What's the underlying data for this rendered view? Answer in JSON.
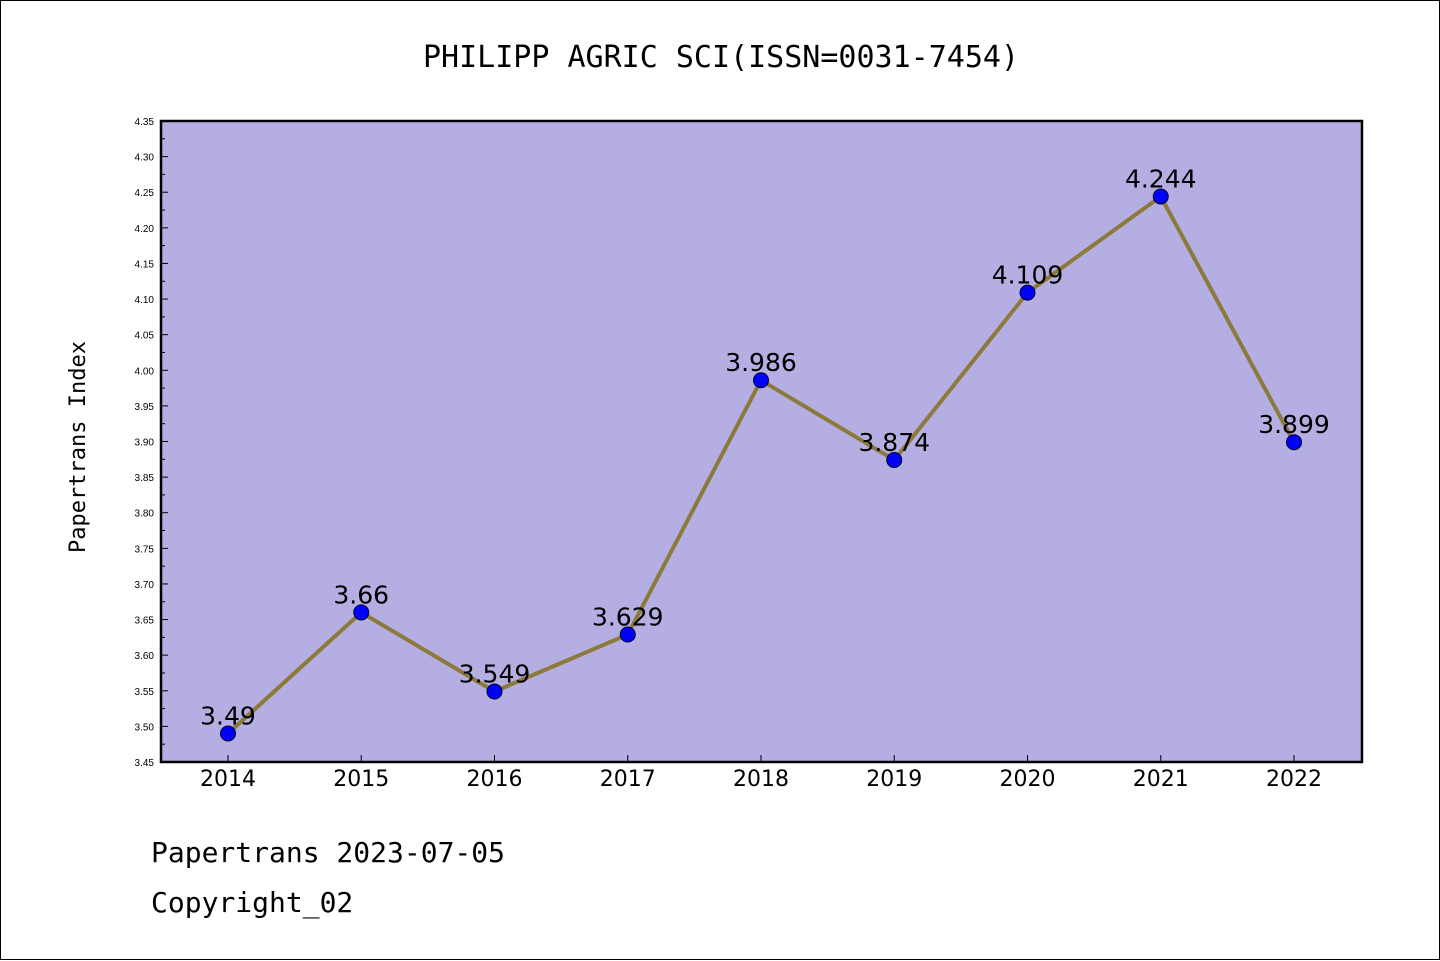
{
  "chart_data": {
    "type": "line",
    "title": "PHILIPP AGRIC SCI(ISSN=0031-7454)",
    "ylabel": "Papertrans Index",
    "xlabel": "",
    "categories": [
      "2014",
      "2015",
      "2016",
      "2017",
      "2018",
      "2019",
      "2020",
      "2021",
      "2022"
    ],
    "series": [
      {
        "values": [
          3.49,
          3.66,
          3.549,
          3.629,
          3.986,
          3.874,
          4.109,
          4.244,
          3.899
        ],
        "labels": [
          "3.49",
          "3.66",
          "3.549",
          "3.629",
          "3.986",
          "3.874",
          "4.109",
          "4.244",
          "3.899"
        ]
      }
    ],
    "ylim": [
      3.45,
      4.35
    ],
    "yticks": [
      "3.45",
      "3.50",
      "3.55",
      "3.60",
      "3.65",
      "3.70",
      "3.75",
      "3.80",
      "3.85",
      "3.90",
      "3.95",
      "4.00",
      "4.05",
      "4.10",
      "4.15",
      "4.20",
      "4.25",
      "4.30",
      "4.35"
    ],
    "grid": false,
    "colors": {
      "plot_background": "#b5aee2",
      "line": "#8b7a3a",
      "marker": "#0000ff"
    }
  },
  "footer": {
    "line1": "Papertrans 2023-07-05",
    "line2": "Copyright_02"
  }
}
